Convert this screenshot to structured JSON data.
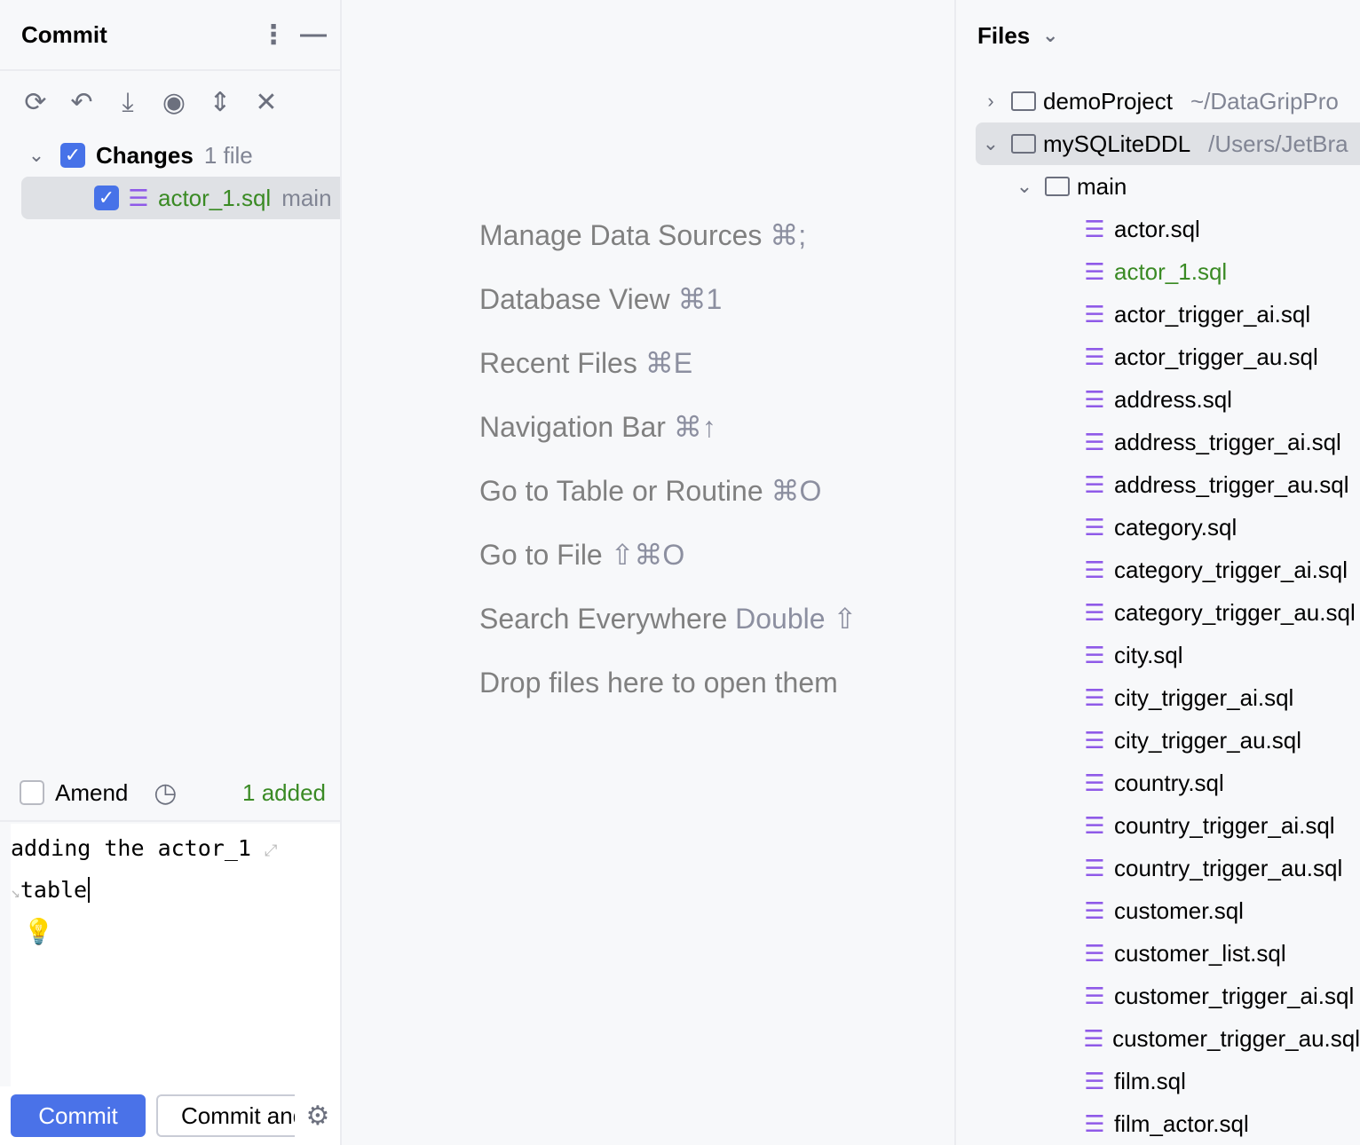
{
  "commit_panel": {
    "title": "Commit",
    "toolbar_icons": [
      "refresh-icon",
      "rollback-icon",
      "shelve-icon",
      "show-diff-icon",
      "expand-all-icon",
      "collapse-all-icon"
    ],
    "changes": {
      "label": "Changes",
      "count": "1 file",
      "checked": true
    },
    "files": [
      {
        "name": "actor_1.sql",
        "location": "main",
        "checked": true
      }
    ],
    "amend_label": "Amend",
    "amend_checked": false,
    "summary": "1 added",
    "message_line1": "adding the actor_1",
    "message_line2": "table",
    "commit_button": "Commit",
    "commit_and_push_button": "Commit and Push..."
  },
  "editor_hints": [
    {
      "label": "Manage Data Sources",
      "shortcut": "⌘;"
    },
    {
      "label": "Database View",
      "shortcut": "⌘1"
    },
    {
      "label": "Recent Files",
      "shortcut": "⌘E"
    },
    {
      "label": "Navigation Bar",
      "shortcut": "⌘↑"
    },
    {
      "label": "Go to Table or Routine",
      "shortcut": "⌘O"
    },
    {
      "label": "Go to File",
      "shortcut": "⇧⌘O"
    },
    {
      "label": "Search Everywhere",
      "shortcut": "Double ⇧"
    },
    {
      "label": "Drop files here to open them",
      "shortcut": ""
    }
  ],
  "files_panel": {
    "title": "Files",
    "projects": [
      {
        "name": "demoProject",
        "path": "~/DataGripPro",
        "expanded": false
      },
      {
        "name": "mySQLiteDDL",
        "path": "/Users/JetBra",
        "expanded": true
      }
    ],
    "folder": "main",
    "files": [
      "actor.sql",
      "actor_1.sql",
      "actor_trigger_ai.sql",
      "actor_trigger_au.sql",
      "address.sql",
      "address_trigger_ai.sql",
      "address_trigger_au.sql",
      "category.sql",
      "category_trigger_ai.sql",
      "category_trigger_au.sql",
      "city.sql",
      "city_trigger_ai.sql",
      "city_trigger_au.sql",
      "country.sql",
      "country_trigger_ai.sql",
      "country_trigger_au.sql",
      "customer.sql",
      "customer_list.sql",
      "customer_trigger_ai.sql",
      "customer_trigger_au.sql",
      "film.sql",
      "film_actor.sql"
    ],
    "highlighted_file": "actor_1.sql"
  },
  "colors": {
    "accent": "#4a72e8",
    "added": "#3a8a24",
    "db_icon": "#8f5ae8"
  }
}
